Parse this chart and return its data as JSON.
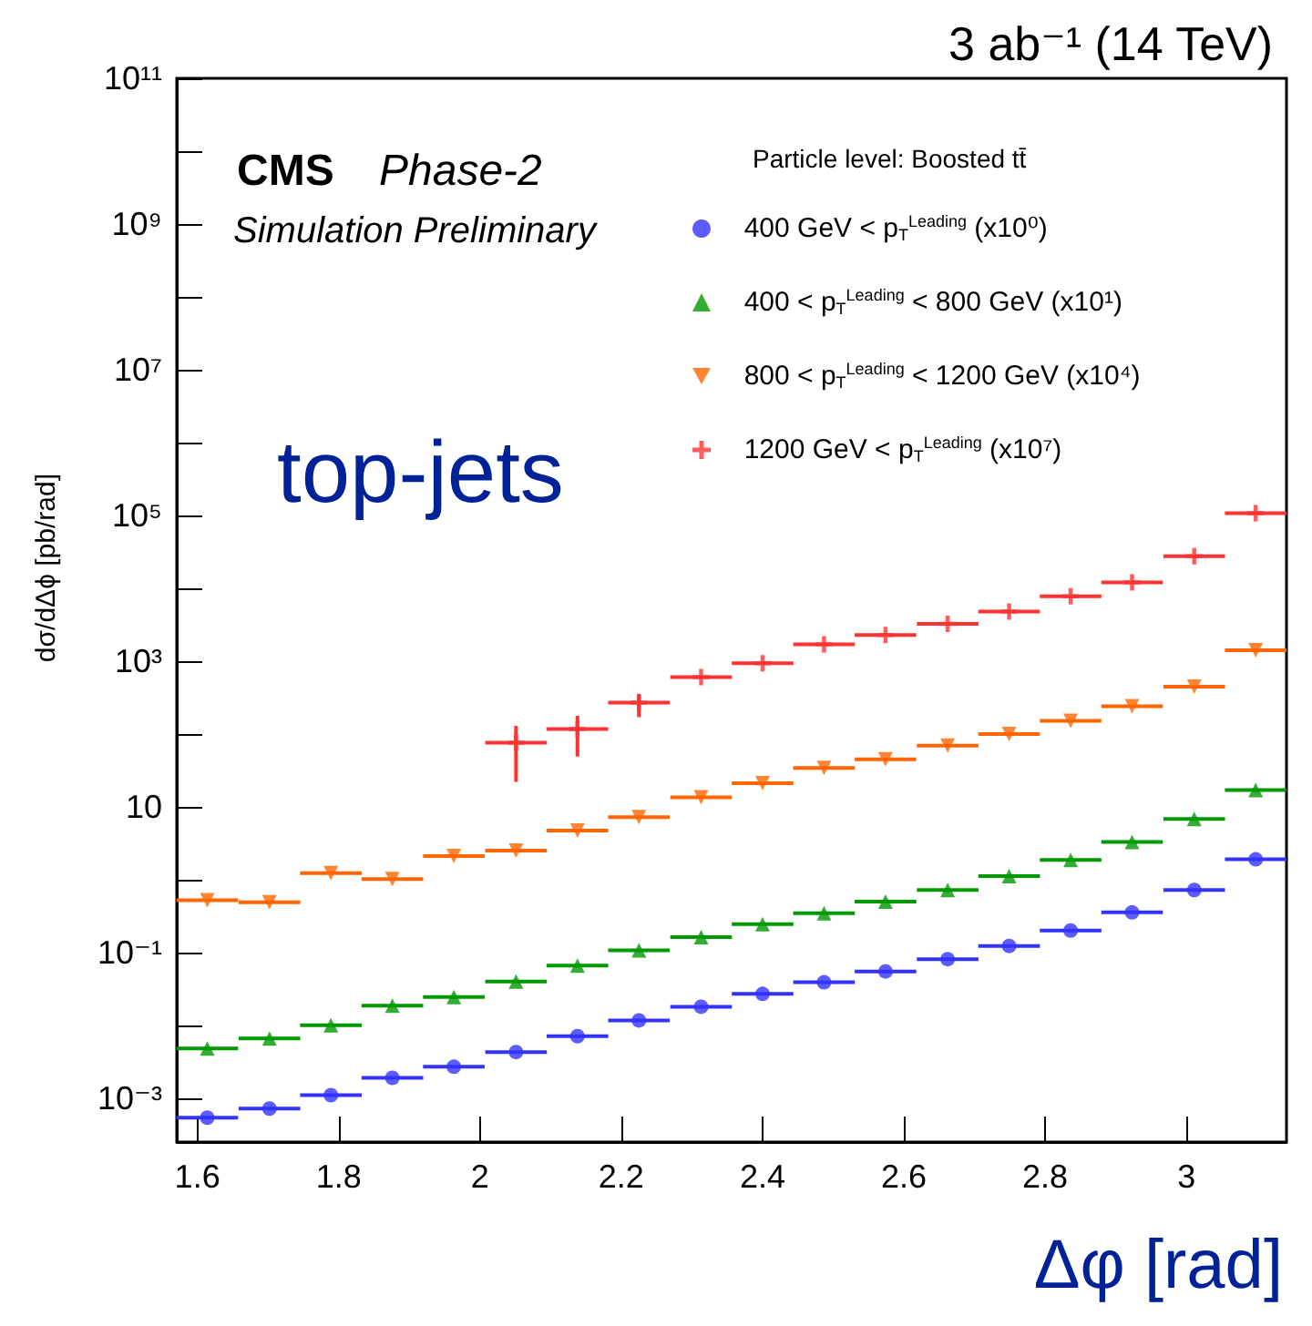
{
  "chart_data": {
    "type": "scatter",
    "title": "3 ab⁻¹ (14 TeV)",
    "xlabel": "Δφ [rad]",
    "ylabel": "dσ/dΔϕ [pb/rad]",
    "legend_title": "Particle level: Boosted tt̄",
    "annotations": [
      "CMS",
      "Phase-2",
      "Simulation Preliminary",
      "top-jets"
    ],
    "x": [
      1.614,
      1.702,
      1.789,
      1.876,
      1.963,
      2.051,
      2.138,
      2.225,
      2.313,
      2.4,
      2.487,
      2.574,
      2.662,
      2.749,
      2.836,
      2.923,
      3.011,
      3.098
    ],
    "series": [
      {
        "name": "400 GeV < p$_{T}$$^{Leading}$ (x10⁰)",
        "color": "#3333ff",
        "marker": "circle",
        "values": [
          0.00054,
          0.00072,
          0.0011,
          0.0019,
          0.0027,
          0.0043,
          0.0071,
          0.0117,
          0.018,
          0.027,
          0.039,
          0.055,
          0.081,
          0.123,
          0.2,
          0.355,
          0.72,
          1.9
        ],
        "xerrors": [
          0.0436,
          0.0436,
          0.0436,
          0.0436,
          0.0436,
          0.0436,
          0.0436,
          0.0436,
          0.0436,
          0.0436,
          0.0436,
          0.0436,
          0.0436,
          0.0436,
          0.0436,
          0.0436,
          0.0436,
          0.0436
        ]
      },
      {
        "name": "400 < p$_{T}$$^{Leading}$ < 800 GeV (x10¹)",
        "color": "#009900",
        "marker": "triangle",
        "values": [
          0.0048,
          0.0066,
          0.01,
          0.0186,
          0.0245,
          0.04,
          0.066,
          0.107,
          0.162,
          0.245,
          0.347,
          0.5,
          0.72,
          1.12,
          1.86,
          3.3,
          6.8,
          17
        ],
        "xerrors": [
          0.0436,
          0.0436,
          0.0436,
          0.0436,
          0.0436,
          0.0436,
          0.0436,
          0.0436,
          0.0436,
          0.0436,
          0.0436,
          0.0436,
          0.0436,
          0.0436,
          0.0436,
          0.0436,
          0.0436,
          0.0436
        ]
      },
      {
        "name": "800 < p$_{T}$$^{Leading}$ < 1200 GeV (x10⁴)",
        "color": "#ff6600",
        "marker": "triangle-down",
        "values": [
          0.52,
          0.49,
          1.23,
          1.02,
          2.1,
          2.5,
          4.7,
          7.2,
          13.5,
          21,
          34,
          45,
          69,
          100,
          151,
          240,
          447,
          1410
        ],
        "xerrors": [
          0.0436,
          0.0436,
          0.0436,
          0.0436,
          0.0436,
          0.0436,
          0.0436,
          0.0436,
          0.0436,
          0.0436,
          0.0436,
          0.0436,
          0.0436,
          0.0436,
          0.0436,
          0.0436,
          0.0436,
          0.0436
        ]
      },
      {
        "name": "1200 GeV < p$_{T}$$^{Leading}$ (x10⁷)",
        "color": "#ff3333",
        "marker": "cross",
        "values": [
          null,
          null,
          null,
          null,
          null,
          76,
          117,
          269,
          603,
          933,
          1700,
          2290,
          3240,
          4790,
          7760,
          12000,
          27500,
          107000
        ],
        "errors": [
          null,
          null,
          null,
          null,
          null,
          [
            22,
            129
          ],
          [
            49,
            178
          ],
          [
            170,
            355
          ],
          null,
          null,
          null,
          null,
          null,
          null,
          null,
          null,
          null,
          null
        ],
        "xerrors": [
          null,
          null,
          null,
          null,
          null,
          0.0436,
          0.0436,
          0.0436,
          0.0436,
          0.0436,
          0.0436,
          0.0436,
          0.0436,
          0.0436,
          0.0436,
          0.0436,
          0.0436,
          0.0436
        ]
      }
    ],
    "xlim": [
      1.5708,
      3.1416
    ],
    "xticks": [
      1.6,
      1.8,
      2,
      2.2,
      2.4,
      2.6,
      2.8,
      3
    ],
    "ylim": [
      0.00025,
      100000000000
    ],
    "yticks": [
      {
        "value": 0.001,
        "label": "10⁻³"
      },
      {
        "value": 0.01,
        "label": null
      },
      {
        "value": 0.1,
        "label": "10⁻¹"
      },
      {
        "value": 1,
        "label": null
      },
      {
        "value": 10,
        "label": "10"
      },
      {
        "value": 100,
        "label": null
      },
      {
        "value": 1000,
        "label": "10³"
      },
      {
        "value": 10000,
        "label": null
      },
      {
        "value": 100000,
        "label": "10⁵"
      },
      {
        "value": 1000000,
        "label": null
      },
      {
        "value": 10000000,
        "label": "10⁷"
      },
      {
        "value": 100000000,
        "label": null
      },
      {
        "value": 1000000000,
        "label": "10⁹"
      },
      {
        "value": 10000000000,
        "label": null
      },
      {
        "value": 100000000000,
        "label": "10¹¹"
      }
    ],
    "log": "y",
    "grid": false,
    "legend": "top right"
  }
}
